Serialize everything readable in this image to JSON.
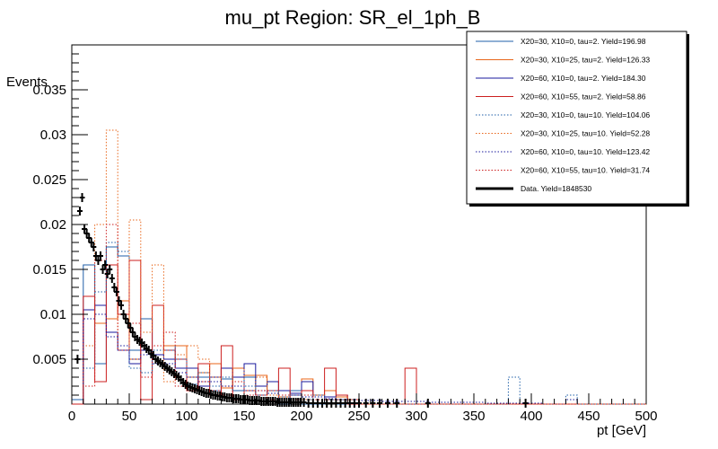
{
  "chart_data": {
    "type": "histogram",
    "title": "mu_pt Region: SR_el_1ph_B",
    "xlabel": "pt [GeV]",
    "ylabel": "Events",
    "xlim": [
      0,
      500
    ],
    "ylim": [
      0,
      0.04
    ],
    "x_ticks": [
      0,
      50,
      100,
      150,
      200,
      250,
      300,
      350,
      400,
      450,
      500
    ],
    "y_ticks": [
      0.005,
      0.01,
      0.015,
      0.02,
      0.025,
      0.03,
      0.035
    ],
    "y_tick_labels": [
      "0.005",
      "0.01",
      "0.015",
      "0.02",
      "0.025",
      "0.03",
      "0.035"
    ],
    "bin_width": 10,
    "legend_position": "top-right",
    "series": [
      {
        "name": "X20=30, X10=0, tau=2. Yield=196.98",
        "color": "#1f5fa8",
        "style": "solid",
        "values": [
          0.0005,
          0.0155,
          0.0045,
          0.0175,
          0.0165,
          0.006,
          0.0095,
          0.0055,
          0.0065,
          0.004,
          0.0022,
          0.003,
          0.0015,
          0.0028,
          0.0015,
          0.003,
          0.001,
          0.0025,
          0,
          0.0015,
          0,
          0,
          0.0008,
          0,
          0.0005,
          0,
          0,
          0,
          0,
          0,
          0,
          0,
          0,
          0,
          0,
          0,
          0,
          0,
          0,
          0,
          0,
          0,
          0,
          0,
          0,
          0,
          0,
          0,
          0,
          0
        ]
      },
      {
        "name": "X20=30, X10=25, tau=2. Yield=126.33",
        "color": "#e8661a",
        "style": "solid",
        "values": [
          0,
          0.0105,
          0.009,
          0.0095,
          0.0115,
          0.005,
          0.006,
          0.0055,
          0.0065,
          0.0065,
          0.003,
          0.0035,
          0.0045,
          0.0018,
          0.004,
          0.0032,
          0.0032,
          0.0015,
          0.0008,
          0.0012,
          0.0028,
          0.001,
          0.0015,
          0.0008,
          0.0005,
          0,
          0,
          0,
          0,
          0,
          0,
          0,
          0,
          0,
          0,
          0,
          0,
          0,
          0,
          0,
          0,
          0,
          0,
          0,
          0,
          0,
          0,
          0,
          0,
          0
        ]
      },
      {
        "name": "X20=60, X10=0, tau=2. Yield=184.30",
        "color": "#1a1a9e",
        "style": "solid",
        "values": [
          0,
          0.0105,
          0.011,
          0.008,
          0.006,
          0.0045,
          0.006,
          0.0055,
          0.005,
          0.004,
          0.004,
          0.002,
          0.003,
          0.004,
          0.003,
          0.0045,
          0.002,
          0.0025,
          0.0015,
          0.0012,
          0.0025,
          0.001,
          0.0008,
          0.001,
          0.0005,
          0,
          0,
          0,
          0,
          0,
          0,
          0,
          0,
          0,
          0,
          0,
          0,
          0,
          0,
          0,
          0,
          0,
          0,
          0,
          0,
          0,
          0,
          0,
          0,
          0
        ]
      },
      {
        "name": "X20=60, X10=55, tau=2. Yield=58.86",
        "color": "#cc1f1f",
        "style": "solid",
        "values": [
          0,
          0.012,
          0.0025,
          0.0155,
          0.01,
          0.016,
          0.0005,
          0.011,
          0.006,
          0.005,
          0.0015,
          0.0045,
          0.001,
          0.0065,
          0.0005,
          0.0015,
          0.001,
          0.0015,
          0.004,
          0.001,
          0.0015,
          0.001,
          0.004,
          0.001,
          0,
          0,
          0,
          0,
          0,
          0.004,
          0,
          0,
          0,
          0,
          0,
          0,
          0,
          0,
          0,
          0,
          0,
          0,
          0,
          0,
          0,
          0,
          0,
          0,
          0,
          0
        ]
      },
      {
        "name": "X20=30, X10=0, tau=10. Yield=104.06",
        "color": "#1f5fa8",
        "style": "dotted",
        "values": [
          0.0005,
          0.004,
          0.0125,
          0.018,
          0.017,
          0.004,
          0.0035,
          0.006,
          0.006,
          0.005,
          0.003,
          0.0035,
          0.002,
          0.003,
          0.0015,
          0.002,
          0.001,
          0.0015,
          0.0008,
          0.001,
          0.0005,
          0.001,
          0.0005,
          0.0005,
          0.0005,
          0,
          0,
          0,
          0,
          0,
          0,
          0,
          0,
          0,
          0,
          0,
          0,
          0,
          0.003,
          0,
          0,
          0,
          0,
          0.001,
          0,
          0,
          0,
          0,
          0,
          0
        ]
      },
      {
        "name": "X20=30, X10=25, tau=10. Yield=52.28",
        "color": "#e8661a",
        "style": "dotted",
        "values": [
          0,
          0.0065,
          0.02,
          0.0305,
          0.006,
          0.0205,
          0.008,
          0.0155,
          0.0025,
          0.0055,
          0.0065,
          0.005,
          0.003,
          0.002,
          0.004,
          0.0015,
          0.003,
          0.001,
          0.0008,
          0.001,
          0.0005,
          0.001,
          0.0005,
          0.0008,
          0.0005,
          0,
          0,
          0,
          0,
          0,
          0,
          0,
          0,
          0,
          0,
          0,
          0,
          0,
          0,
          0,
          0,
          0,
          0,
          0,
          0,
          0,
          0,
          0,
          0,
          0
        ]
      },
      {
        "name": "X20=60, X10=0, tau=10. Yield=123.42",
        "color": "#1a1a9e",
        "style": "dotted",
        "values": [
          0,
          0.0095,
          0.01,
          0.0075,
          0.0065,
          0.005,
          0.0055,
          0.0045,
          0.0045,
          0.0035,
          0.003,
          0.0025,
          0.0025,
          0.002,
          0.002,
          0.0015,
          0.0015,
          0.0012,
          0.001,
          0.001,
          0.0008,
          0.0008,
          0.0006,
          0.0005,
          0.0005,
          0.0004,
          0.0004,
          0.0003,
          0.0003,
          0.0003,
          0.0003,
          0.0002,
          0.0002,
          0.0002,
          0.0002,
          0.0002,
          0.0001,
          0.0001,
          0.0001,
          0.0001,
          0.0001,
          0,
          0,
          0.0005,
          0,
          0,
          0,
          0,
          0,
          0
        ]
      },
      {
        "name": "X20=60, X10=55, tau=10. Yield=31.74",
        "color": "#cc1f1f",
        "style": "dotted",
        "values": [
          0,
          0.002,
          0.016,
          0.02,
          0.006,
          0.009,
          0.003,
          0.0065,
          0.008,
          0.002,
          0.0015,
          0.0025,
          0.0015,
          0.001,
          0.0025,
          0.001,
          0.0015,
          0.0005,
          0.001,
          0.0005,
          0.001,
          0.0005,
          0.0005,
          0.0005,
          0.0005,
          0,
          0,
          0,
          0,
          0,
          0,
          0,
          0,
          0,
          0,
          0,
          0,
          0,
          0,
          0,
          0,
          0,
          0,
          0,
          0,
          0,
          0,
          0,
          0,
          0
        ]
      }
    ],
    "data": {
      "name": "Data. Yield=1848530",
      "color": "#000000",
      "points": [
        [
          5,
          0.005
        ],
        [
          7,
          0.0215
        ],
        [
          9,
          0.023
        ],
        [
          11,
          0.0195
        ],
        [
          13,
          0.019
        ],
        [
          15,
          0.0185
        ],
        [
          17,
          0.018
        ],
        [
          19,
          0.0175
        ],
        [
          21,
          0.0165
        ],
        [
          23,
          0.016
        ],
        [
          25,
          0.0165
        ],
        [
          27,
          0.015
        ],
        [
          29,
          0.0155
        ],
        [
          31,
          0.0145
        ],
        [
          33,
          0.015
        ],
        [
          35,
          0.014
        ],
        [
          37,
          0.013
        ],
        [
          39,
          0.0125
        ],
        [
          41,
          0.0115
        ],
        [
          43,
          0.011
        ],
        [
          45,
          0.01
        ],
        [
          47,
          0.0095
        ],
        [
          49,
          0.009
        ],
        [
          51,
          0.0085
        ],
        [
          53,
          0.008
        ],
        [
          55,
          0.0075
        ],
        [
          57,
          0.0072
        ],
        [
          59,
          0.007
        ],
        [
          61,
          0.0068
        ],
        [
          63,
          0.0065
        ],
        [
          65,
          0.0062
        ],
        [
          67,
          0.006
        ],
        [
          69,
          0.0056
        ],
        [
          71,
          0.0054
        ],
        [
          73,
          0.005
        ],
        [
          75,
          0.0048
        ],
        [
          77,
          0.0046
        ],
        [
          79,
          0.0044
        ],
        [
          81,
          0.0042
        ],
        [
          83,
          0.004
        ],
        [
          85,
          0.0038
        ],
        [
          87,
          0.0036
        ],
        [
          89,
          0.0034
        ],
        [
          91,
          0.0032
        ],
        [
          93,
          0.003
        ],
        [
          95,
          0.0027
        ],
        [
          97,
          0.0024
        ],
        [
          99,
          0.0022
        ],
        [
          101,
          0.002
        ],
        [
          103,
          0.0019
        ],
        [
          105,
          0.0018
        ],
        [
          107,
          0.0017
        ],
        [
          109,
          0.0016
        ],
        [
          111,
          0.0015
        ],
        [
          113,
          0.0014
        ],
        [
          115,
          0.0013
        ],
        [
          117,
          0.0012
        ],
        [
          119,
          0.0012
        ],
        [
          121,
          0.0011
        ],
        [
          123,
          0.001
        ],
        [
          125,
          0.001
        ],
        [
          127,
          0.0009
        ],
        [
          129,
          0.0009
        ],
        [
          131,
          0.0008
        ],
        [
          133,
          0.0008
        ],
        [
          135,
          0.0007
        ],
        [
          137,
          0.0007
        ],
        [
          139,
          0.0007
        ],
        [
          141,
          0.0006
        ],
        [
          143,
          0.0006
        ],
        [
          145,
          0.0006
        ],
        [
          147,
          0.0005
        ],
        [
          149,
          0.0005
        ],
        [
          151,
          0.0005
        ],
        [
          153,
          0.0005
        ],
        [
          155,
          0.0004
        ],
        [
          157,
          0.0004
        ],
        [
          159,
          0.0004
        ],
        [
          161,
          0.0004
        ],
        [
          163,
          0.0004
        ],
        [
          165,
          0.0003
        ],
        [
          167,
          0.0003
        ],
        [
          169,
          0.0003
        ],
        [
          171,
          0.0003
        ],
        [
          173,
          0.0003
        ],
        [
          175,
          0.0003
        ],
        [
          177,
          0.0003
        ],
        [
          179,
          0.0002
        ],
        [
          181,
          0.0002
        ],
        [
          183,
          0.0002
        ],
        [
          185,
          0.0002
        ],
        [
          187,
          0.0002
        ],
        [
          189,
          0.0002
        ],
        [
          191,
          0.0002
        ],
        [
          193,
          0.0002
        ],
        [
          195,
          0.0002
        ],
        [
          197,
          0.0002
        ],
        [
          199,
          0.0002
        ],
        [
          202,
          0.0002
        ],
        [
          206,
          0.0001
        ],
        [
          210,
          0.0001
        ],
        [
          214,
          0.0001
        ],
        [
          218,
          0.0001
        ],
        [
          222,
          0.0001
        ],
        [
          226,
          0.0001
        ],
        [
          230,
          0.0001
        ],
        [
          234,
          0.0001
        ],
        [
          238,
          0.0001
        ],
        [
          242,
          0.0001
        ],
        [
          246,
          0.0001
        ],
        [
          250,
          0.0001
        ],
        [
          256,
          0.0001
        ],
        [
          262,
          0.0001
        ],
        [
          268,
          0.0001
        ],
        [
          275,
          0.0001
        ],
        [
          283,
          0.0001
        ],
        [
          310,
          0.0001
        ],
        [
          395,
          0.0001
        ]
      ]
    }
  }
}
